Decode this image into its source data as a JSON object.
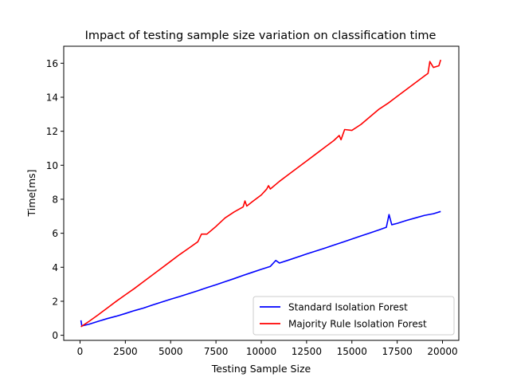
{
  "chart_data": {
    "type": "line",
    "title": "Impact of testing sample size variation on classification time",
    "xlabel": "Testing Sample Size",
    "ylabel": "Time[ms]",
    "xlim": [
      -900,
      20900
    ],
    "ylim": [
      -0.3,
      17
    ],
    "xticks": [
      0,
      2500,
      5000,
      7500,
      10000,
      12500,
      15000,
      17500,
      20000
    ],
    "xtick_labels": [
      "0",
      "2500",
      "5000",
      "7500",
      "10000",
      "12500",
      "15000",
      "17500",
      "20000"
    ],
    "yticks": [
      0,
      2,
      4,
      6,
      8,
      10,
      12,
      14,
      16
    ],
    "ytick_labels": [
      "0",
      "2",
      "4",
      "6",
      "8",
      "10",
      "12",
      "14",
      "16"
    ],
    "grid": false,
    "legend_position": "bottom-right",
    "series": [
      {
        "name": "Standard Isolation Forest",
        "color": "#0000ff",
        "points": [
          [
            50,
            0.88
          ],
          [
            100,
            0.55
          ],
          [
            500,
            0.65
          ],
          [
            1000,
            0.82
          ],
          [
            1500,
            0.98
          ],
          [
            2000,
            1.12
          ],
          [
            2500,
            1.28
          ],
          [
            3000,
            1.45
          ],
          [
            3500,
            1.6
          ],
          [
            4000,
            1.78
          ],
          [
            4500,
            1.95
          ],
          [
            5000,
            2.12
          ],
          [
            5500,
            2.28
          ],
          [
            6000,
            2.45
          ],
          [
            6500,
            2.62
          ],
          [
            7000,
            2.8
          ],
          [
            7500,
            2.97
          ],
          [
            8000,
            3.15
          ],
          [
            8500,
            3.33
          ],
          [
            9000,
            3.52
          ],
          [
            9500,
            3.7
          ],
          [
            10000,
            3.88
          ],
          [
            10500,
            4.05
          ],
          [
            10800,
            4.4
          ],
          [
            11000,
            4.25
          ],
          [
            11500,
            4.42
          ],
          [
            12000,
            4.6
          ],
          [
            12500,
            4.78
          ],
          [
            13000,
            4.95
          ],
          [
            13500,
            5.12
          ],
          [
            14000,
            5.3
          ],
          [
            14500,
            5.48
          ],
          [
            15000,
            5.66
          ],
          [
            15500,
            5.84
          ],
          [
            16000,
            6.02
          ],
          [
            16500,
            6.2
          ],
          [
            16900,
            6.35
          ],
          [
            17050,
            7.1
          ],
          [
            17200,
            6.5
          ],
          [
            17500,
            6.58
          ],
          [
            18000,
            6.75
          ],
          [
            18500,
            6.9
          ],
          [
            19000,
            7.05
          ],
          [
            19500,
            7.15
          ],
          [
            19900,
            7.28
          ]
        ]
      },
      {
        "name": "Majority Rule Isolation Forest",
        "color": "#ff0000",
        "points": [
          [
            50,
            0.5
          ],
          [
            500,
            0.82
          ],
          [
            1000,
            1.2
          ],
          [
            1500,
            1.6
          ],
          [
            2000,
            2.0
          ],
          [
            2500,
            2.38
          ],
          [
            3000,
            2.75
          ],
          [
            3500,
            3.15
          ],
          [
            4000,
            3.55
          ],
          [
            4500,
            3.95
          ],
          [
            5000,
            4.35
          ],
          [
            5500,
            4.75
          ],
          [
            6000,
            5.12
          ],
          [
            6500,
            5.5
          ],
          [
            6700,
            5.95
          ],
          [
            7000,
            5.95
          ],
          [
            7500,
            6.4
          ],
          [
            8000,
            6.9
          ],
          [
            8500,
            7.25
          ],
          [
            9000,
            7.55
          ],
          [
            9100,
            7.9
          ],
          [
            9200,
            7.6
          ],
          [
            9500,
            7.85
          ],
          [
            10000,
            8.25
          ],
          [
            10300,
            8.6
          ],
          [
            10400,
            8.8
          ],
          [
            10500,
            8.6
          ],
          [
            11000,
            9.05
          ],
          [
            11500,
            9.45
          ],
          [
            12000,
            9.85
          ],
          [
            12500,
            10.25
          ],
          [
            13000,
            10.65
          ],
          [
            13500,
            11.05
          ],
          [
            14000,
            11.45
          ],
          [
            14300,
            11.75
          ],
          [
            14400,
            11.5
          ],
          [
            14600,
            12.1
          ],
          [
            15000,
            12.05
          ],
          [
            15500,
            12.4
          ],
          [
            16000,
            12.85
          ],
          [
            16500,
            13.3
          ],
          [
            17000,
            13.65
          ],
          [
            17500,
            14.05
          ],
          [
            18000,
            14.45
          ],
          [
            18500,
            14.85
          ],
          [
            19000,
            15.25
          ],
          [
            19200,
            15.4
          ],
          [
            19300,
            16.1
          ],
          [
            19500,
            15.75
          ],
          [
            19800,
            15.85
          ],
          [
            19900,
            16.2
          ]
        ]
      }
    ]
  }
}
